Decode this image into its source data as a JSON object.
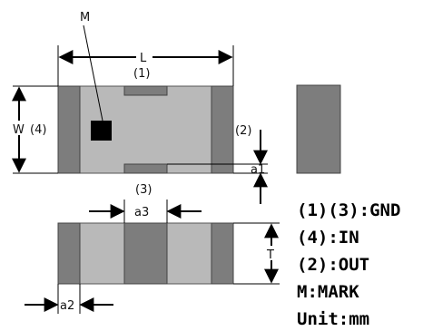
{
  "labels": {
    "mark_callout": "M",
    "length": "L",
    "width": "W",
    "thickness": "T",
    "pin1": "(1)",
    "pin2": "(2)",
    "pin3": "(3)",
    "pin4": "(4)",
    "dim_a1": "a1",
    "dim_a2": "a2",
    "dim_a3": "a3"
  },
  "legend": [
    "(1)(3):GND",
    "(4):IN",
    "(2):OUT",
    "M:MARK",
    "Unit:mm"
  ],
  "colors": {
    "body": "#b9b9b9",
    "electrode": "#7d7d7d",
    "outline": "#555555",
    "mark": "#000000",
    "line": "#000000"
  }
}
